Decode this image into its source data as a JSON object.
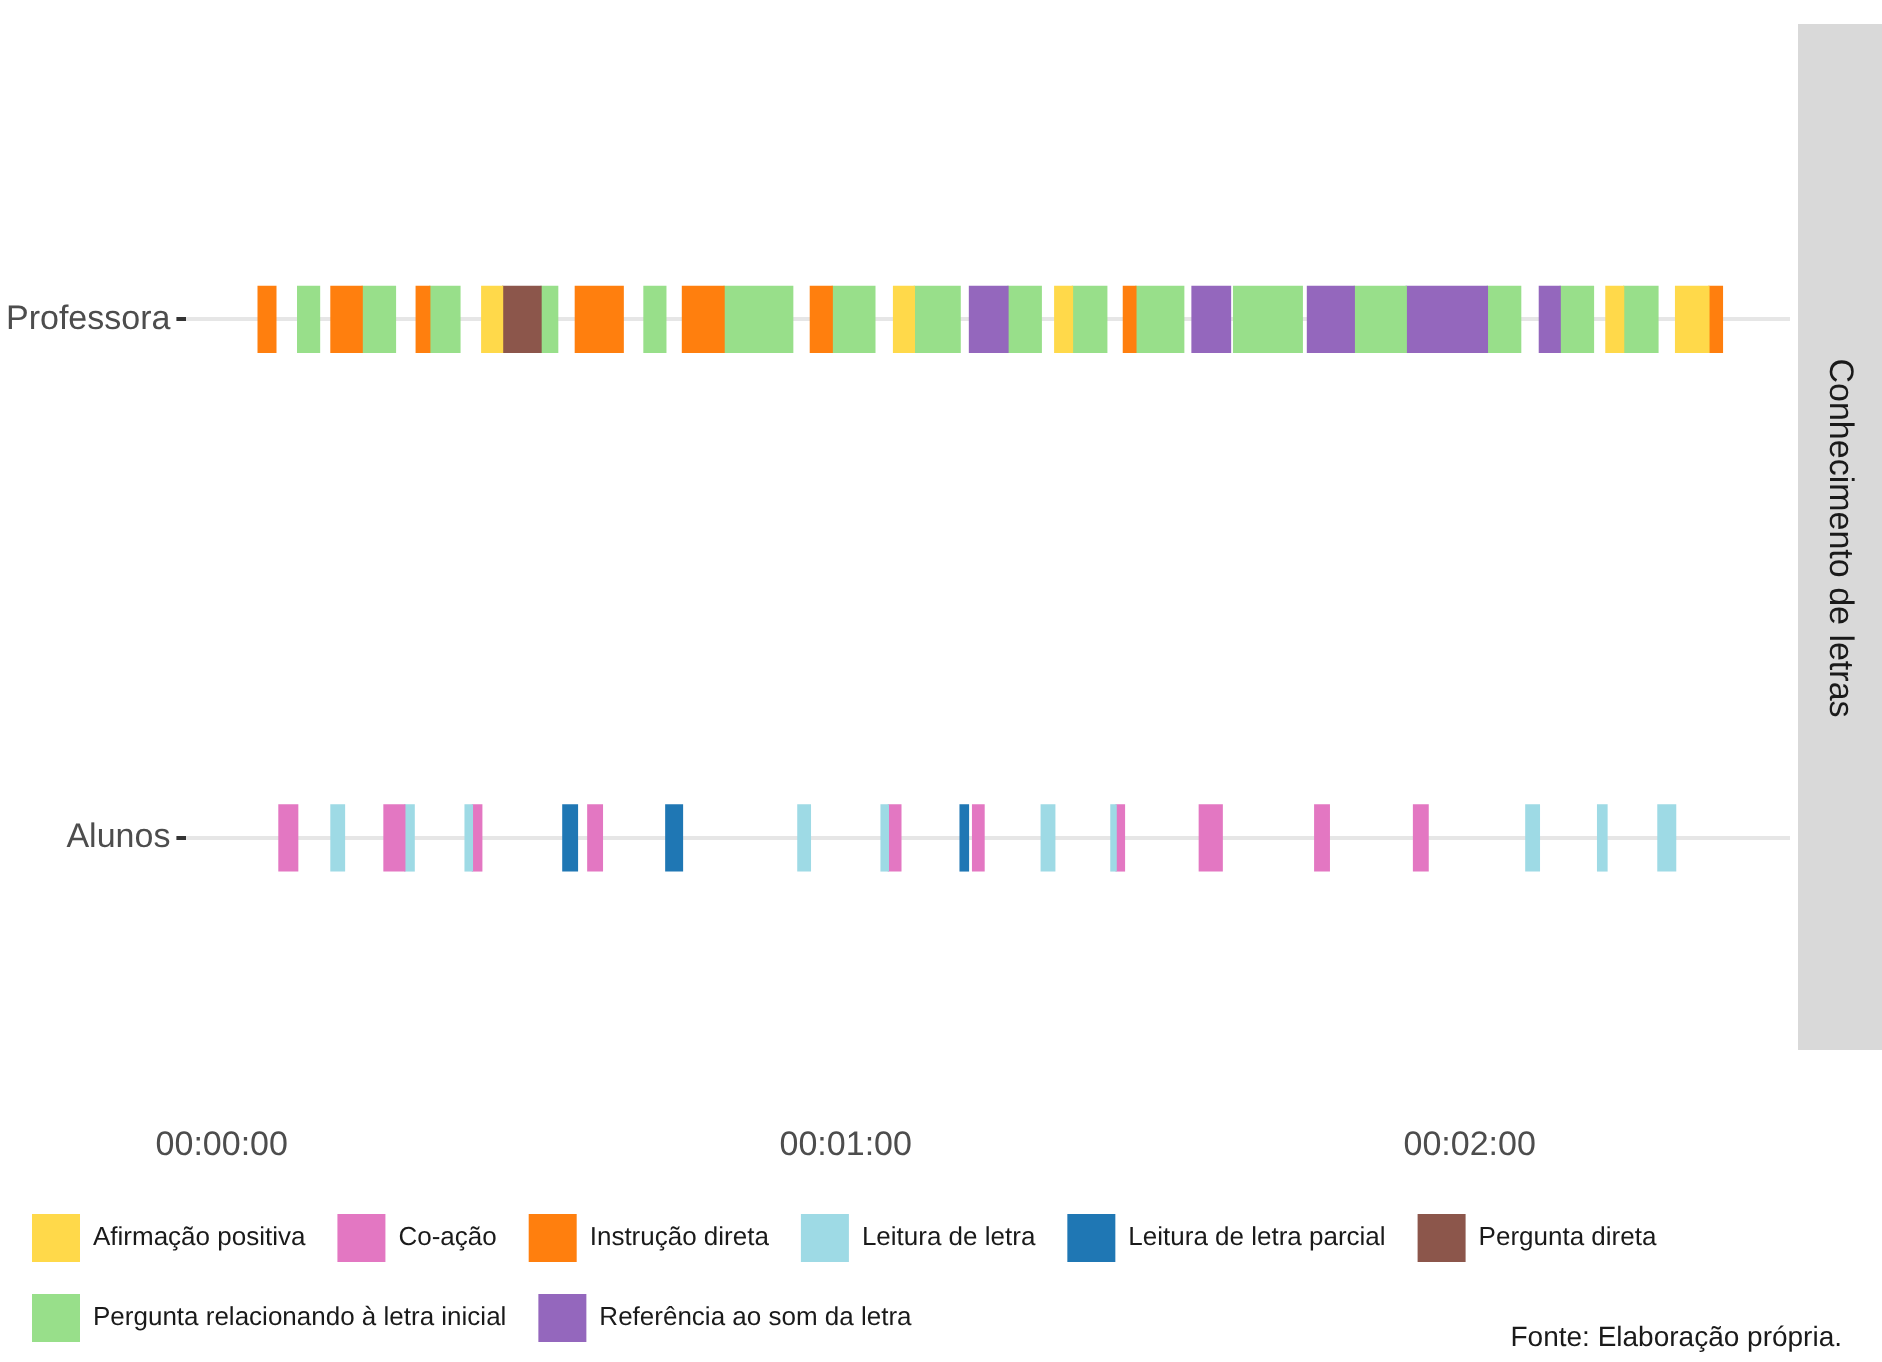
{
  "chart_data": {
    "type": "bar",
    "orientation": "horizontal",
    "title": "Conhecimento de letras",
    "categories": [
      "Professora",
      "Alunos"
    ],
    "xlim": [
      -3.4,
      150.8
    ],
    "xticks": [
      {
        "value": 0,
        "label": "00:00:00"
      },
      {
        "value": 60,
        "label": "00:01:00"
      },
      {
        "value": 120,
        "label": "00:02:00"
      }
    ],
    "grid": "y",
    "legend": "bottom",
    "annotations": [
      "Fonte: Elaboração própria."
    ],
    "series": [
      {
        "name": "Afirmação positiva",
        "color": "#ffd94a",
        "base": [
          25.0,
          null
        ],
        "values": [
          2.0,
          null
        ]
      },
      {
        "name": "Co-ação",
        "color": "#e377c2",
        "base": [
          null,
          5.5
        ],
        "values": [
          null,
          1.8
        ]
      },
      {
        "name": "Instrução direta",
        "color": "#ff7f0e",
        "base": [
          3.5,
          null
        ],
        "values": [
          1.7,
          null
        ]
      },
      {
        "name": "Leitura de letra",
        "color": "#9edae5",
        "base": [
          null,
          10.5
        ],
        "values": [
          null,
          1.3
        ]
      },
      {
        "name": "Leitura de letra parcial",
        "color": "#1f77b4",
        "base": [
          null,
          32.8
        ],
        "values": [
          null,
          1.4
        ]
      },
      {
        "name": "Pergunta direta",
        "color": "#8c564b",
        "base": [
          27.0,
          null
        ],
        "values": [
          3.7,
          null
        ]
      },
      {
        "name": "Pergunta relacionando à letra inicial",
        "color": "#98df8a",
        "base": [
          7.3,
          null
        ],
        "values": [
          2.1,
          null
        ]
      },
      {
        "name": "Referência ao som da letra",
        "color": "#9467bd",
        "base": [
          71.9,
          null
        ],
        "values": [
          3.7,
          null
        ]
      },
      {
        "color": "#ff7f0e",
        "base": [
          10.5,
          null
        ],
        "values": [
          3.0,
          null
        ]
      },
      {
        "color": "#98df8a",
        "base": [
          13.5,
          null
        ],
        "values": [
          3.2,
          null
        ]
      },
      {
        "color": "#ff7f0e",
        "base": [
          18.7,
          null
        ],
        "values": [
          1.3,
          null
        ]
      },
      {
        "color": "#98df8a",
        "base": [
          20.0,
          null
        ],
        "values": [
          2.9,
          null
        ]
      },
      {
        "color": "#98df8a",
        "base": [
          30.7,
          null
        ],
        "values": [
          1.6,
          null
        ]
      },
      {
        "color": "#ff7f0e",
        "base": [
          34.0,
          null
        ],
        "values": [
          4.6,
          null
        ]
      },
      {
        "color": "#98df8a",
        "base": [
          40.6,
          null
        ],
        "values": [
          2.1,
          null
        ]
      },
      {
        "color": "#ff7f0e",
        "base": [
          44.3,
          null
        ],
        "values": [
          4.0,
          null
        ]
      },
      {
        "color": "#98df8a",
        "base": [
          48.3,
          null
        ],
        "values": [
          6.6,
          null
        ]
      },
      {
        "color": "#ff7f0e",
        "base": [
          56.6,
          null
        ],
        "values": [
          2.1,
          null
        ]
      },
      {
        "color": "#98df8a",
        "base": [
          58.7,
          null
        ],
        "values": [
          4.1,
          null
        ]
      },
      {
        "color": "#ffd94a",
        "base": [
          64.6,
          null
        ],
        "values": [
          2.0,
          null
        ]
      },
      {
        "color": "#98df8a",
        "base": [
          66.6,
          null
        ],
        "values": [
          4.4,
          null
        ]
      },
      {
        "color": "#98df8a",
        "base": [
          75.6,
          null
        ],
        "values": [
          3.2,
          null
        ]
      },
      {
        "color": "#ffd94a",
        "base": [
          80.1,
          null
        ],
        "values": [
          1.7,
          null
        ]
      },
      {
        "color": "#98df8a",
        "base": [
          81.8,
          null
        ],
        "values": [
          3.3,
          null
        ]
      },
      {
        "color": "#ff7f0e",
        "base": [
          86.7,
          null
        ],
        "values": [
          1.2,
          null
        ]
      },
      {
        "color": "#98df8a",
        "base": [
          87.9,
          null
        ],
        "values": [
          4.6,
          null
        ]
      },
      {
        "color": "#9467bd",
        "base": [
          93.3,
          null
        ],
        "values": [
          3.7,
          null
        ]
      },
      {
        "color": "#98df8a",
        "base": [
          97.3,
          null
        ],
        "values": [
          6.6,
          null
        ]
      },
      {
        "color": "#9467bd",
        "base": [
          104.4,
          null
        ],
        "values": [
          4.5,
          null
        ]
      },
      {
        "color": "#98df8a",
        "base": [
          108.9,
          null
        ],
        "values": [
          5.0,
          null
        ]
      },
      {
        "color": "#9467bd",
        "base": [
          113.9,
          null
        ],
        "values": [
          7.8,
          null
        ]
      },
      {
        "color": "#98df8a",
        "base": [
          121.7,
          null
        ],
        "values": [
          3.2,
          null
        ]
      },
      {
        "color": "#9467bd",
        "base": [
          126.7,
          null
        ],
        "values": [
          2.0,
          null
        ]
      },
      {
        "color": "#98df8a",
        "base": [
          128.7,
          null
        ],
        "values": [
          3.2,
          null
        ]
      },
      {
        "color": "#ffd94a",
        "base": [
          133.1,
          null
        ],
        "values": [
          1.7,
          null
        ]
      },
      {
        "color": "#98df8a",
        "base": [
          134.8,
          null
        ],
        "values": [
          3.3,
          null
        ]
      },
      {
        "color": "#ffd94a",
        "base": [
          139.8,
          null
        ],
        "values": [
          3.2,
          null
        ]
      },
      {
        "color": "#ff7f0e",
        "base": [
          143.0,
          null
        ],
        "values": [
          1.3,
          null
        ]
      },
      {
        "color": "#e377c2",
        "base": [
          null,
          15.6
        ],
        "values": [
          null,
          2.0
        ]
      },
      {
        "color": "#9edae5",
        "base": [
          null,
          17.6
        ],
        "values": [
          null,
          0.9
        ]
      },
      {
        "color": "#9edae5",
        "base": [
          null,
          23.4
        ],
        "values": [
          null,
          0.7
        ]
      },
      {
        "color": "#e377c2",
        "base": [
          null,
          24.1
        ],
        "values": [
          null,
          0.9
        ]
      },
      {
        "color": "#e377c2",
        "base": [
          null,
          35.2
        ],
        "values": [
          null,
          1.4
        ]
      },
      {
        "color": "#1f77b4",
        "base": [
          null,
          42.7
        ],
        "values": [
          null,
          1.6
        ]
      },
      {
        "color": "#9edae5",
        "base": [
          null,
          55.4
        ],
        "values": [
          null,
          1.2
        ]
      },
      {
        "color": "#9edae5",
        "base": [
          null,
          63.4
        ],
        "values": [
          null,
          0.7
        ]
      },
      {
        "color": "#e377c2",
        "base": [
          null,
          64.1
        ],
        "values": [
          null,
          1.2
        ]
      },
      {
        "color": "#1f77b4",
        "base": [
          null,
          71.0
        ],
        "values": [
          null,
          0.8
        ]
      },
      {
        "color": "#e377c2",
        "base": [
          null,
          72.2
        ],
        "values": [
          null,
          1.1
        ]
      },
      {
        "color": "#9edae5",
        "base": [
          null,
          78.8
        ],
        "values": [
          null,
          1.3
        ]
      },
      {
        "color": "#9edae5",
        "base": [
          null,
          85.5
        ],
        "values": [
          null,
          0.5
        ]
      },
      {
        "color": "#e377c2",
        "base": [
          null,
          86.0
        ],
        "values": [
          null,
          0.8
        ]
      },
      {
        "color": "#e377c2",
        "base": [
          null,
          94.0
        ],
        "values": [
          null,
          2.2
        ]
      },
      {
        "color": "#e377c2",
        "base": [
          null,
          105.1
        ],
        "values": [
          null,
          1.4
        ]
      },
      {
        "color": "#e377c2",
        "base": [
          null,
          114.6
        ],
        "values": [
          null,
          1.4
        ]
      },
      {
        "color": "#9edae5",
        "base": [
          null,
          125.4
        ],
        "values": [
          null,
          1.3
        ]
      },
      {
        "color": "#9edae5",
        "base": [
          null,
          132.3
        ],
        "values": [
          null,
          0.9
        ]
      },
      {
        "color": "#9edae5",
        "base": [
          null,
          138.1
        ],
        "values": [
          null,
          1.7
        ]
      }
    ]
  }
}
